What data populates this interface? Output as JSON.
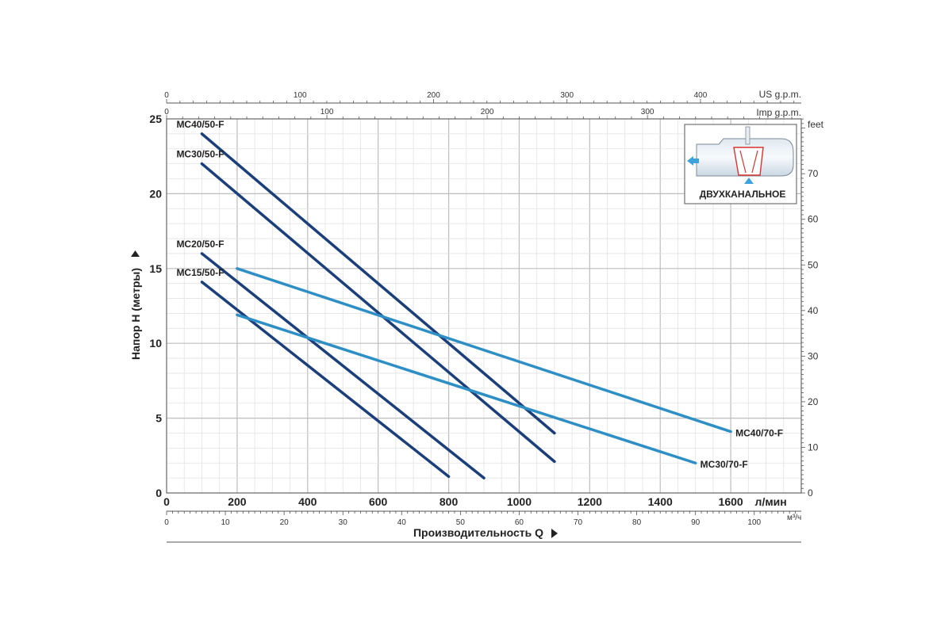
{
  "chart_data": {
    "type": "line",
    "ylabel": "Напор H (метры)",
    "xlabel": "Производительность Q",
    "x_unit": "л/мин",
    "x_unit_secondary": "м³/ч",
    "y_unit_secondary": "feet",
    "top_axis_us_label": "US g.p.m.",
    "top_axis_imp_label": "Imp g.p.m.",
    "xlim": [
      0,
      1800
    ],
    "ylim": [
      0,
      25
    ],
    "x_ticks": [
      "0",
      "200",
      "400",
      "600",
      "800",
      "1000",
      "1200",
      "1400",
      "1600"
    ],
    "y_ticks": [
      "0",
      "5",
      "10",
      "15",
      "20",
      "25"
    ],
    "m3h_ticks": [
      "0",
      "10",
      "20",
      "30",
      "40",
      "50",
      "60",
      "70",
      "80",
      "90",
      "100"
    ],
    "feet_ticks": [
      "0",
      "10",
      "20",
      "30",
      "40",
      "50",
      "60",
      "70"
    ],
    "us_gpm_ticks": [
      "0",
      "100",
      "200",
      "300",
      "400"
    ],
    "imp_gpm_ticks": [
      "0",
      "100",
      "200",
      "300"
    ],
    "grid": true,
    "series": [
      {
        "name": "MC40/50-F",
        "color": "#1b3f7a",
        "x": [
          100,
          1100
        ],
        "y": [
          24,
          4.0
        ]
      },
      {
        "name": "MC30/50-F",
        "color": "#1b3f7a",
        "x": [
          100,
          1100
        ],
        "y": [
          22,
          2.1
        ]
      },
      {
        "name": "MC20/50-F",
        "color": "#1b3f7a",
        "x": [
          100,
          900
        ],
        "y": [
          16,
          1.0
        ]
      },
      {
        "name": "MC15/50-F",
        "color": "#1b3f7a",
        "x": [
          100,
          800
        ],
        "y": [
          14.1,
          1.1
        ]
      },
      {
        "name": "MC40/70-F",
        "color": "#2e8fc6",
        "x": [
          200,
          1600
        ],
        "y": [
          15,
          4.1
        ]
      },
      {
        "name": "MC30/70-F",
        "color": "#2e8fc6",
        "x": [
          200,
          1500
        ],
        "y": [
          11.9,
          2.0
        ]
      }
    ]
  },
  "inset": {
    "label": "ДВУХКАНАЛЬНОЕ",
    "icon": "dual-channel-impeller-icon"
  }
}
